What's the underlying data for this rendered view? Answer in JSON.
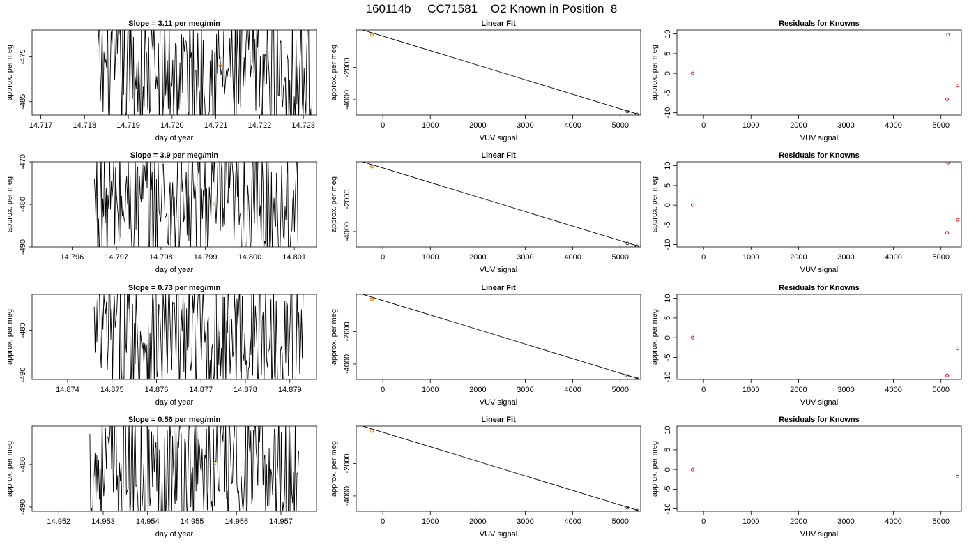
{
  "main_title": "160114b     CC71581    O2 Known in Position  8",
  "colors": {
    "series": "#000000",
    "known": "#ff8c00",
    "residual": "#cc0000",
    "faint": "#c8c8c8"
  },
  "chart_data": [
    {
      "type": "line",
      "panel": "drift",
      "row": 1,
      "title": "Slope =  3.11  per meg/min",
      "xlabel": "day of year",
      "ylabel": "approx. per meg",
      "xlim": [
        14.7168,
        14.7233
      ],
      "ylim": [
        -488,
        -469
      ],
      "xticks": [
        14.717,
        14.718,
        14.719,
        14.72,
        14.721,
        14.722,
        14.723
      ],
      "xtick_labels": [
        "14.717",
        "14.718",
        "14.719",
        "14.720",
        "14.721",
        "14.722",
        "14.723"
      ],
      "yticks": [
        -485,
        -475
      ],
      "ytick_labels": [
        "-485",
        "-475"
      ],
      "data_x_range": [
        14.7183,
        14.7232
      ],
      "data_y_range": [
        -488,
        -469
      ],
      "marker": {
        "x": 14.7211,
        "y": -477
      },
      "faint_lines_x": [
        14.7203,
        14.7213,
        14.7223
      ],
      "grid": false
    },
    {
      "type": "line",
      "panel": "drift",
      "row": 2,
      "title": "Slope =  3.9  per meg/min",
      "xlabel": "day of year",
      "ylabel": "approx. per meg",
      "xlim": [
        14.7951,
        14.8015
      ],
      "ylim": [
        -490,
        -470
      ],
      "xticks": [
        14.796,
        14.797,
        14.798,
        14.799,
        14.8,
        14.801
      ],
      "xtick_labels": [
        "14.796",
        "14.797",
        "14.798",
        "14.799",
        "14.800",
        "14.801"
      ],
      "yticks": [
        -490,
        -480,
        -470
      ],
      "ytick_labels": [
        "-490",
        "-480",
        "-470"
      ],
      "data_x_range": [
        14.7965,
        14.8011
      ],
      "data_y_range": [
        -490,
        -470
      ],
      "marker": {
        "x": 14.7992,
        "y": -480
      },
      "faint_lines_x": [
        14.7978,
        14.7987,
        14.8004
      ],
      "grid": false
    },
    {
      "type": "line",
      "panel": "drift",
      "row": 3,
      "title": "Slope =  0.73  per meg/min",
      "xlabel": "day of year",
      "ylabel": "approx. per meg",
      "xlim": [
        14.8732,
        14.8796
      ],
      "ylim": [
        -491,
        -472
      ],
      "xticks": [
        14.874,
        14.875,
        14.876,
        14.877,
        14.878,
        14.879
      ],
      "xtick_labels": [
        "14.874",
        "14.875",
        "14.876",
        "14.877",
        "14.878",
        "14.879"
      ],
      "yticks": [
        -490,
        -480
      ],
      "ytick_labels": [
        "-490",
        "-480"
      ],
      "data_x_range": [
        14.8746,
        14.8793
      ],
      "data_y_range": [
        -491,
        -472
      ],
      "marker": {
        "x": 14.8774,
        "y": -481
      },
      "faint_lines_x": [
        14.8765,
        14.8775,
        14.8783
      ],
      "grid": false
    },
    {
      "type": "line",
      "panel": "drift",
      "row": 4,
      "title": "Slope =  0.56  per meg/min",
      "xlabel": "day of year",
      "ylabel": "approx. per meg",
      "xlim": [
        14.9514,
        14.9578
      ],
      "ylim": [
        -491,
        -471
      ],
      "xticks": [
        14.952,
        14.953,
        14.954,
        14.955,
        14.956,
        14.957
      ],
      "xtick_labels": [
        "14.952",
        "14.953",
        "14.954",
        "14.955",
        "14.956",
        "14.957"
      ],
      "yticks": [
        -490,
        -480
      ],
      "ytick_labels": [
        "-490",
        "-480"
      ],
      "data_x_range": [
        14.9527,
        14.9574
      ],
      "data_y_range": [
        -491,
        -471
      ],
      "marker": {
        "x": 14.9555,
        "y": -480
      },
      "faint_lines_x": [
        14.9546,
        14.9564,
        14.9571
      ],
      "grid": false
    },
    {
      "type": "scatter",
      "panel": "fit",
      "row": 1,
      "title": "Linear Fit",
      "xlabel": "VUV signal",
      "ylabel": "approx. per meg",
      "xlim": [
        -560,
        5430
      ],
      "ylim": [
        -4950,
        300
      ],
      "xticks": [
        0,
        1000,
        2000,
        3000,
        4000,
        5000
      ],
      "xtick_labels": [
        "0",
        "1000",
        "2000",
        "3000",
        "4000",
        "5000"
      ],
      "yticks": [
        -4000,
        -2000
      ],
      "ytick_labels": [
        "-4000",
        "-2000"
      ],
      "fit_line": {
        "x": [
          -500,
          5400
        ],
        "y": [
          370,
          -4920
        ]
      },
      "points": [
        {
          "x": -230,
          "y": 0
        },
        {
          "x": 5150,
          "y": -4730
        },
        {
          "x": 5350,
          "y": -4910
        }
      ],
      "known_point": {
        "x": -230,
        "y": 0
      }
    },
    {
      "type": "scatter",
      "panel": "fit",
      "row": 2,
      "title": "Linear Fit",
      "xlabel": "VUV signal",
      "ylabel": "approx. per meg",
      "xlim": [
        -560,
        5430
      ],
      "ylim": [
        -4950,
        300
      ],
      "xticks": [
        0,
        1000,
        2000,
        3000,
        4000,
        5000
      ],
      "xtick_labels": [
        "0",
        "1000",
        "2000",
        "3000",
        "4000",
        "5000"
      ],
      "yticks": [
        -4000,
        -2000
      ],
      "ytick_labels": [
        "-4000",
        "-2000"
      ],
      "fit_line": {
        "x": [
          -500,
          5400
        ],
        "y": [
          370,
          -4920
        ]
      },
      "points": [
        {
          "x": -230,
          "y": 0
        },
        {
          "x": 5150,
          "y": -4730
        },
        {
          "x": 5350,
          "y": -4910
        }
      ],
      "known_point": {
        "x": -230,
        "y": 0
      }
    },
    {
      "type": "scatter",
      "panel": "fit",
      "row": 3,
      "title": "Linear Fit",
      "xlabel": "VUV signal",
      "ylabel": "approx. per meg",
      "xlim": [
        -560,
        5430
      ],
      "ylim": [
        -4950,
        300
      ],
      "xticks": [
        0,
        1000,
        2000,
        3000,
        4000,
        5000
      ],
      "xtick_labels": [
        "0",
        "1000",
        "2000",
        "3000",
        "4000",
        "5000"
      ],
      "yticks": [
        -4000,
        -2000
      ],
      "ytick_labels": [
        "-4000",
        "-2000"
      ],
      "fit_line": {
        "x": [
          -500,
          5400
        ],
        "y": [
          370,
          -4920
        ]
      },
      "points": [
        {
          "x": -230,
          "y": 0
        },
        {
          "x": 5150,
          "y": -4730
        },
        {
          "x": 5350,
          "y": -4910
        }
      ],
      "known_point": {
        "x": -230,
        "y": 0
      }
    },
    {
      "type": "scatter",
      "panel": "fit",
      "row": 4,
      "title": "Linear Fit",
      "xlabel": "VUV signal",
      "ylabel": "approx. per meg",
      "xlim": [
        -560,
        5430
      ],
      "ylim": [
        -4950,
        300
      ],
      "xticks": [
        0,
        1000,
        2000,
        3000,
        4000,
        5000
      ],
      "xtick_labels": [
        "0",
        "1000",
        "2000",
        "3000",
        "4000",
        "5000"
      ],
      "yticks": [
        -4000,
        -2000
      ],
      "ytick_labels": [
        "-4000",
        "-2000"
      ],
      "fit_line": {
        "x": [
          -500,
          5400
        ],
        "y": [
          370,
          -4920
        ]
      },
      "points": [
        {
          "x": -230,
          "y": 0
        },
        {
          "x": 5150,
          "y": -4730
        },
        {
          "x": 5350,
          "y": -4910
        }
      ],
      "known_point": {
        "x": -230,
        "y": 0
      }
    },
    {
      "type": "scatter",
      "panel": "residuals",
      "row": 1,
      "title": "Residuals for Knowns",
      "xlabel": "VUV signal",
      "ylabel": "approx. per meg",
      "xlim": [
        -560,
        5430
      ],
      "ylim": [
        -10.6,
        11
      ],
      "xticks": [
        0,
        1000,
        2000,
        3000,
        4000,
        5000
      ],
      "xtick_labels": [
        "0",
        "1000",
        "2000",
        "3000",
        "4000",
        "5000"
      ],
      "yticks": [
        -10,
        -5,
        0,
        5,
        10
      ],
      "ytick_labels": [
        "-10",
        "-5",
        "0",
        "5",
        "10"
      ],
      "points": [
        {
          "x": -230,
          "y": 0
        },
        {
          "x": 5150,
          "y": 9.8
        },
        {
          "x": 5130,
          "y": -6.6
        },
        {
          "x": 5350,
          "y": -3.1
        }
      ]
    },
    {
      "type": "scatter",
      "panel": "residuals",
      "row": 2,
      "title": "Residuals for Knowns",
      "xlabel": "VUV signal",
      "ylabel": "approx. per meg",
      "xlim": [
        -560,
        5430
      ],
      "ylim": [
        -10.6,
        11
      ],
      "xticks": [
        0,
        1000,
        2000,
        3000,
        4000,
        5000
      ],
      "xtick_labels": [
        "0",
        "1000",
        "2000",
        "3000",
        "4000",
        "5000"
      ],
      "yticks": [
        -10,
        -5,
        0,
        5,
        10
      ],
      "ytick_labels": [
        "-10",
        "-5",
        "0",
        "5",
        "10"
      ],
      "points": [
        {
          "x": -230,
          "y": 0
        },
        {
          "x": 5150,
          "y": 10.8
        },
        {
          "x": 5130,
          "y": -7.0
        },
        {
          "x": 5350,
          "y": -3.7
        }
      ]
    },
    {
      "type": "scatter",
      "panel": "residuals",
      "row": 3,
      "title": "Residuals for Knowns",
      "xlabel": "VUV signal",
      "ylabel": "approx. per meg",
      "xlim": [
        -560,
        5430
      ],
      "ylim": [
        -10.6,
        11
      ],
      "xticks": [
        0,
        1000,
        2000,
        3000,
        4000,
        5000
      ],
      "xtick_labels": [
        "0",
        "1000",
        "2000",
        "3000",
        "4000",
        "5000"
      ],
      "yticks": [
        -10,
        -5,
        0,
        5,
        10
      ],
      "ytick_labels": [
        "-10",
        "-5",
        "0",
        "5",
        "10"
      ],
      "points": [
        {
          "x": -230,
          "y": 0
        },
        {
          "x": 5130,
          "y": -9.6
        },
        {
          "x": 5350,
          "y": -2.7
        }
      ]
    },
    {
      "type": "scatter",
      "panel": "residuals",
      "row": 4,
      "title": "Residuals for Knowns",
      "xlabel": "VUV signal",
      "ylabel": "approx. per meg",
      "xlim": [
        -560,
        5430
      ],
      "ylim": [
        -10.6,
        11
      ],
      "xticks": [
        0,
        1000,
        2000,
        3000,
        4000,
        5000
      ],
      "xtick_labels": [
        "0",
        "1000",
        "2000",
        "3000",
        "4000",
        "5000"
      ],
      "yticks": [
        -10,
        -5,
        0,
        5,
        10
      ],
      "ytick_labels": [
        "-10",
        "-5",
        "0",
        "5",
        "10"
      ],
      "points": [
        {
          "x": -230,
          "y": 0
        },
        {
          "x": 5350,
          "y": -1.8
        }
      ]
    }
  ]
}
